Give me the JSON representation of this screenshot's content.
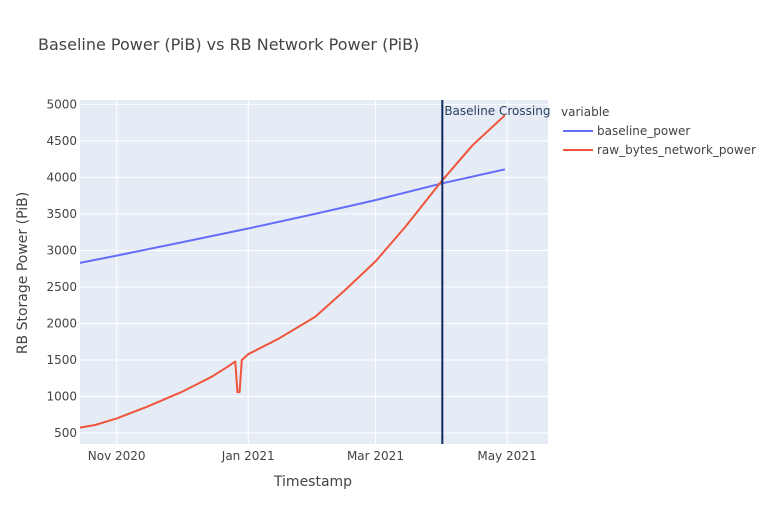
{
  "chart_data": {
    "type": "line",
    "title": "Baseline Power (PiB) vs RB Network Power (PiB)",
    "xlabel": "Timestamp",
    "ylabel": "RB Storage Power (PiB)",
    "x_ticks": [
      {
        "date": "2020-11-01",
        "label": "Nov 2020"
      },
      {
        "date": "2021-01-01",
        "label": "Jan 2021"
      },
      {
        "date": "2021-03-01",
        "label": "Mar 2021"
      },
      {
        "date": "2021-05-01",
        "label": "May 2021"
      }
    ],
    "xlim": [
      "2020-10-15",
      "2021-05-20"
    ],
    "ylim": [
      350,
      5060
    ],
    "y_ticks": [
      500,
      1000,
      1500,
      2000,
      2500,
      3000,
      3500,
      4000,
      4500,
      5000
    ],
    "grid": true,
    "legend": {
      "title": "variable",
      "placement": "right"
    },
    "series": [
      {
        "name": "baseline_power",
        "color": "#636efa",
        "points": [
          [
            "2020-10-15",
            2830
          ],
          [
            "2020-11-01",
            2930
          ],
          [
            "2020-12-01",
            3110
          ],
          [
            "2021-01-01",
            3300
          ],
          [
            "2021-02-01",
            3500
          ],
          [
            "2021-03-01",
            3690
          ],
          [
            "2021-04-01",
            3920
          ],
          [
            "2021-04-30",
            4110
          ]
        ]
      },
      {
        "name": "raw_bytes_network_power",
        "color": "#ef553b",
        "points": [
          [
            "2020-10-15",
            575
          ],
          [
            "2020-10-22",
            610
          ],
          [
            "2020-11-01",
            700
          ],
          [
            "2020-11-15",
            860
          ],
          [
            "2020-12-01",
            1060
          ],
          [
            "2020-12-15",
            1270
          ],
          [
            "2020-12-22",
            1400
          ],
          [
            "2020-12-26",
            1480
          ],
          [
            "2020-12-27",
            1060
          ],
          [
            "2020-12-28",
            1060
          ],
          [
            "2020-12-29",
            1500
          ],
          [
            "2021-01-01",
            1580
          ],
          [
            "2021-01-15",
            1790
          ],
          [
            "2021-02-01",
            2090
          ],
          [
            "2021-02-15",
            2460
          ],
          [
            "2021-03-01",
            2850
          ],
          [
            "2021-03-15",
            3330
          ],
          [
            "2021-04-01",
            3960
          ],
          [
            "2021-04-15",
            4440
          ],
          [
            "2021-04-30",
            4850
          ]
        ]
      }
    ],
    "annotations": [
      {
        "type": "vline",
        "date": "2021-04-01",
        "text": "Baseline Crossing",
        "color": "#0d2a63"
      }
    ]
  }
}
